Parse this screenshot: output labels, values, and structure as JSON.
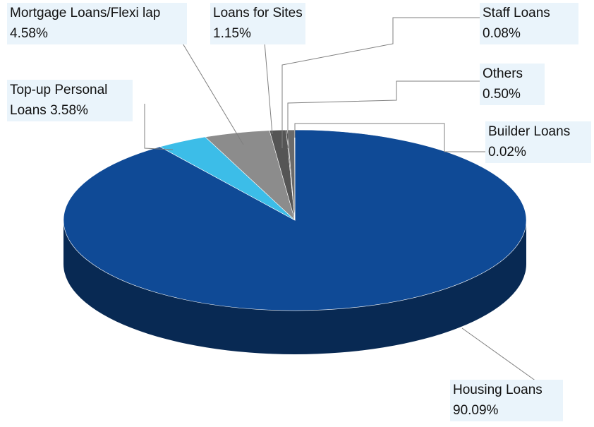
{
  "chart_data": {
    "type": "pie",
    "categories": [
      "Housing Loans",
      "Top-up Personal Loans",
      "Mortgage Loans/Flexi lap",
      "Loans for Sites",
      "Staff Loans",
      "Others",
      "Builder Loans"
    ],
    "values": [
      90.09,
      3.58,
      4.58,
      1.15,
      0.08,
      0.5,
      0.02
    ],
    "value_labels": [
      "90.09%",
      "3.58%",
      "4.58%",
      "1.15%",
      "0.08%",
      "0.50%",
      "0.02%"
    ],
    "colors": [
      "#0f4a96",
      "#3cbde8",
      "#8c8c8c",
      "#555555",
      "#333333",
      "#6a6a6a",
      "#222222"
    ]
  }
}
